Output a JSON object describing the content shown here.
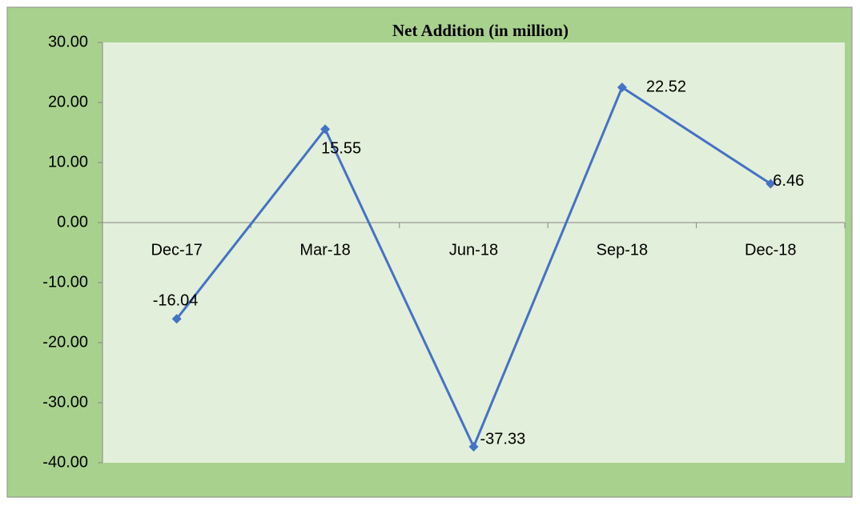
{
  "chart_data": {
    "type": "line",
    "title": "Net Addition (in million)",
    "categories": [
      "Dec-17",
      "Mar-18",
      "Jun-18",
      "Sep-18",
      "Dec-18"
    ],
    "series": [
      {
        "name": "Net Addition",
        "color": "#4472c4",
        "values": [
          -16.04,
          15.55,
          -37.33,
          22.52,
          6.46
        ]
      }
    ],
    "ylim": [
      -40,
      30
    ],
    "yticks": [
      {
        "value": -40,
        "label": "-40.00"
      },
      {
        "value": -30,
        "label": "-30.00"
      },
      {
        "value": -20,
        "label": "-20.00"
      },
      {
        "value": -10,
        "label": "-10.00"
      },
      {
        "value": 0,
        "label": "0.00"
      },
      {
        "value": 10,
        "label": "10.00"
      },
      {
        "value": 20,
        "label": "20.00"
      },
      {
        "value": 30,
        "label": "30.00"
      }
    ],
    "grid": false
  }
}
